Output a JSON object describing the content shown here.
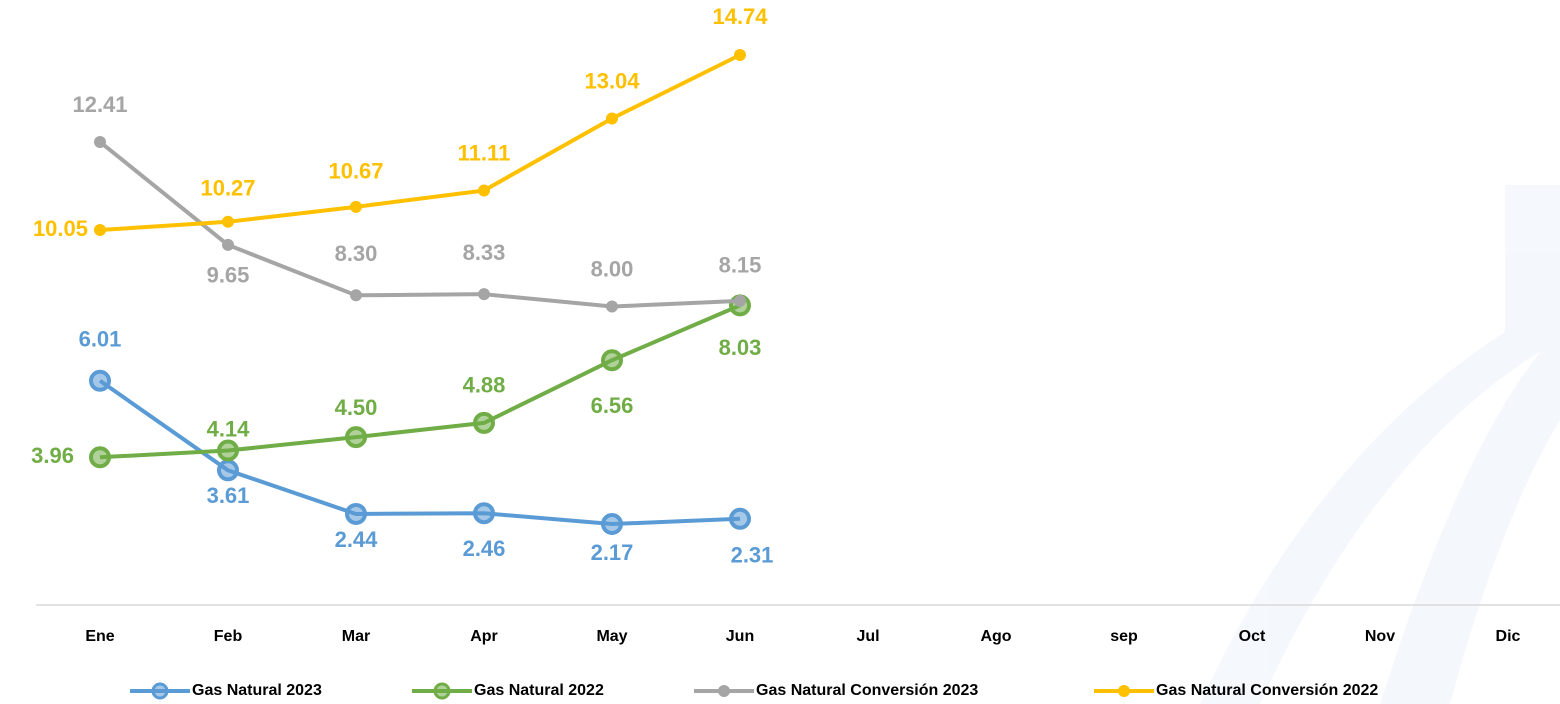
{
  "chart_data": {
    "type": "line",
    "categories": [
      "Ene",
      "Feb",
      "Mar",
      "Apr",
      "May",
      "Jun",
      "Jul",
      "Ago",
      "sep",
      "Oct",
      "Nov",
      "Dic"
    ],
    "ylim": [
      0,
      16
    ],
    "series": [
      {
        "name": "Gas Natural 2023",
        "color": "#5b9bd5",
        "values": [
          6.01,
          3.61,
          2.44,
          2.46,
          2.17,
          2.31,
          null,
          null,
          null,
          null,
          null,
          null
        ],
        "value_labels": [
          "6.01",
          "3.61",
          "2.44",
          "2.46",
          "2.17",
          "2.31",
          null,
          null,
          null,
          null,
          null,
          null
        ]
      },
      {
        "name": "Gas Natural 2022",
        "color": "#70ad47",
        "values": [
          3.96,
          4.14,
          4.5,
          4.88,
          6.56,
          8.03,
          null,
          null,
          null,
          null,
          null,
          null
        ],
        "value_labels": [
          "3.96",
          "4.14",
          "4.50",
          "4.88",
          "6.56",
          "8.03",
          null,
          null,
          null,
          null,
          null,
          null
        ]
      },
      {
        "name": "Gas Natural Conversión 2023",
        "color": "#a5a5a5",
        "values": [
          12.41,
          9.65,
          8.3,
          8.33,
          8.0,
          8.15,
          null,
          null,
          null,
          null,
          null,
          null
        ],
        "value_labels": [
          "12.41",
          "9.65",
          "8.30",
          "8.33",
          "8.00",
          "8.15",
          null,
          null,
          null,
          null,
          null,
          null
        ]
      },
      {
        "name": "Gas Natural Conversión 2022",
        "color": "#ffc000",
        "values": [
          10.05,
          10.27,
          10.67,
          11.11,
          13.04,
          14.74,
          null,
          null,
          null,
          null,
          null,
          null
        ],
        "value_labels": [
          "10.05",
          "10.27",
          "10.67",
          "11.11",
          "13.04",
          "14.74",
          null,
          null,
          null,
          null,
          null,
          null
        ]
      }
    ]
  }
}
